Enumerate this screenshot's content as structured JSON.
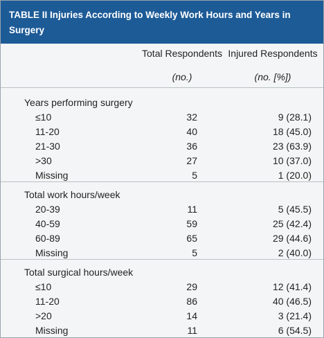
{
  "header": {
    "title": "TABLE II Injuries According to Weekly Work Hours and Years in Surgery"
  },
  "table": {
    "columns": [
      {
        "label": "Total Respondents",
        "unit": "(no.)"
      },
      {
        "label": "Injured Respondents",
        "unit": "(no. [%])"
      }
    ],
    "sections": [
      {
        "label": "Years performing surgery",
        "rows": [
          [
            "≤10",
            "32",
            "9 (28.1)"
          ],
          [
            "11-20",
            "40",
            "18 (45.0)"
          ],
          [
            "21-30",
            "36",
            "23 (63.9)"
          ],
          [
            ">30",
            "27",
            "10 (37.0)"
          ],
          [
            "Missing",
            "5",
            "1 (20.0)"
          ]
        ]
      },
      {
        "label": "Total work hours/week",
        "rows": [
          [
            "20-39",
            "11",
            "5 (45.5)"
          ],
          [
            "40-59",
            "59",
            "25 (42.4)"
          ],
          [
            "60-89",
            "65",
            "29 (44.6)"
          ],
          [
            "Missing",
            "5",
            "2 (40.0)"
          ]
        ]
      },
      {
        "label": "Total surgical hours/week",
        "rows": [
          [
            "≤10",
            "29",
            "12 (41.4)"
          ],
          [
            "11-20",
            "86",
            "40 (46.5)"
          ],
          [
            ">20",
            "14",
            "3 (21.4)"
          ],
          [
            "Missing",
            "11",
            "6 (54.5)"
          ]
        ]
      }
    ]
  }
}
